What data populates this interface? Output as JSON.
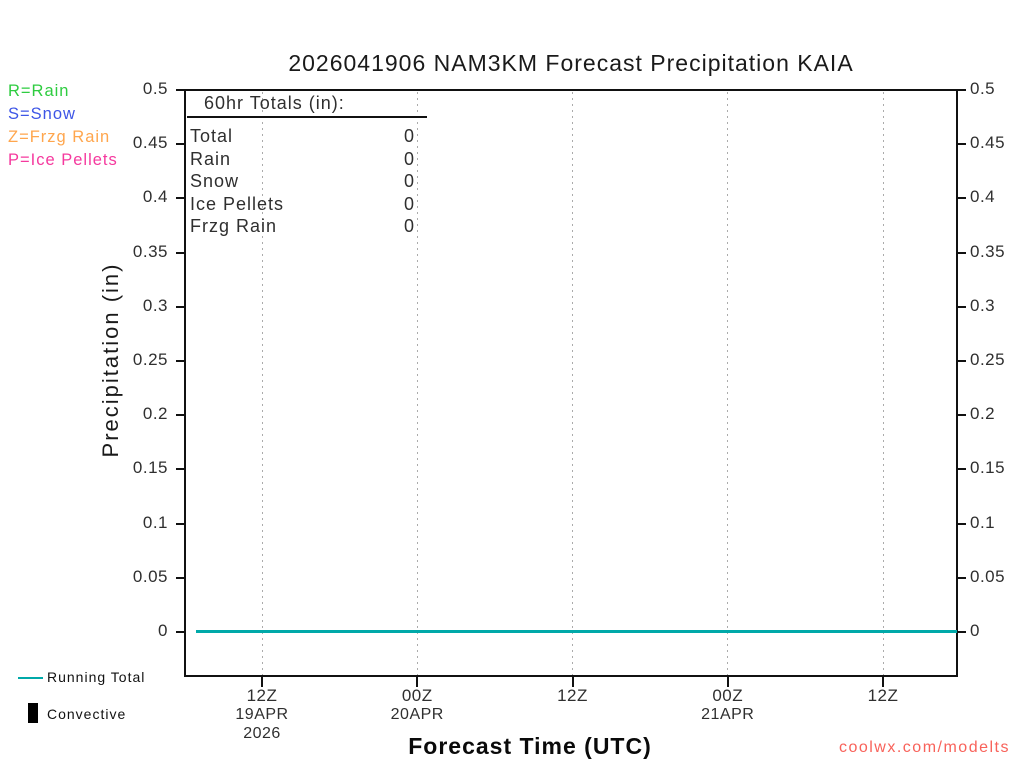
{
  "title": "2026041906 NAM3KM Forecast Precipitation KAIA",
  "type_legend": {
    "items": [
      {
        "label": "R=Rain",
        "color": "#2ecc40"
      },
      {
        "label": "S=Snow",
        "color": "#3d55e6"
      },
      {
        "label": "Z=Frzg Rain",
        "color": "#ffa64d"
      },
      {
        "label": "P=Ice Pellets",
        "color": "#f5399e"
      }
    ]
  },
  "totals_box": {
    "title": "60hr Totals (in):",
    "rows": [
      {
        "label": "Total",
        "value": "0"
      },
      {
        "label": "Rain",
        "value": "0"
      },
      {
        "label": "Snow",
        "value": "0"
      },
      {
        "label": "Ice Pellets",
        "value": "0"
      },
      {
        "label": "Frzg Rain",
        "value": "0"
      }
    ]
  },
  "axes": {
    "y_label": "Precipitation (in)",
    "x_label": "Forecast Time (UTC)",
    "y_ticks": [
      "0.5",
      "0.45",
      "0.4",
      "0.35",
      "0.3",
      "0.25",
      "0.2",
      "0.15",
      "0.1",
      "0.05",
      "0"
    ],
    "x_ticks": [
      {
        "time": "12Z",
        "date": "19APR",
        "year": "2026"
      },
      {
        "time": "00Z",
        "date": "20APR",
        "year": ""
      },
      {
        "time": "12Z",
        "date": "",
        "year": ""
      },
      {
        "time": "00Z",
        "date": "21APR",
        "year": ""
      },
      {
        "time": "12Z",
        "date": "",
        "year": ""
      }
    ]
  },
  "series_legend": {
    "running_total": {
      "label": "Running Total",
      "color": "#00a9a9"
    },
    "convective": {
      "label": "Convective",
      "color": "#000000"
    }
  },
  "watermark": {
    "text": "coolwx.com/modelts",
    "color": "#f8625a"
  },
  "chart_data": {
    "type": "line",
    "title": "2026041906 NAM3KM Forecast Precipitation KAIA",
    "xlabel": "Forecast Time (UTC)",
    "ylabel": "Precipitation (in)",
    "ylim": [
      0,
      0.5
    ],
    "y_tick_step": 0.05,
    "x_range_hours": 60,
    "x_tick_labels": [
      "12Z 19APR 2026",
      "00Z 20APR",
      "12Z",
      "00Z 21APR",
      "12Z"
    ],
    "grid": "vertical dotted gridlines at each x tick, no horizontal gridlines",
    "legend_position": "bottom-left",
    "series": [
      {
        "name": "Running Total",
        "color": "#00a9a9",
        "x_hours": [
          0,
          6,
          12,
          18,
          24,
          30,
          36,
          42,
          48,
          54,
          60
        ],
        "values": [
          0,
          0,
          0,
          0,
          0,
          0,
          0,
          0,
          0,
          0,
          0
        ]
      },
      {
        "name": "Convective",
        "color": "#000000",
        "x_hours": [
          0,
          6,
          12,
          18,
          24,
          30,
          36,
          42,
          48,
          54,
          60
        ],
        "values": [
          0,
          0,
          0,
          0,
          0,
          0,
          0,
          0,
          0,
          0,
          0
        ]
      }
    ],
    "totals_60hr_in": {
      "Total": 0,
      "Rain": 0,
      "Snow": 0,
      "Ice Pellets": 0,
      "Frzg Rain": 0
    }
  }
}
